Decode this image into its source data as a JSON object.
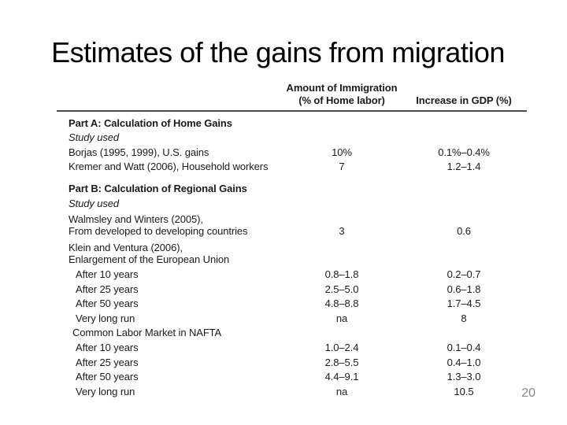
{
  "slide": {
    "title": "Estimates of the gains from migration",
    "page_number": "20"
  },
  "colors": {
    "text": "#1a1a1a",
    "title": "#000000",
    "header_rule": "#4a4a4a",
    "page_number": "#898989",
    "background": "#ffffff"
  },
  "table": {
    "header": {
      "amount_line1": "Amount of Immigration",
      "amount_line2": "(% of Home labor)",
      "gdp": "Increase in GDP (%)"
    },
    "rows": [
      {
        "label": "Part A: Calculation of Home Gains",
        "amount": "",
        "gdp": "",
        "classes": [
          "section"
        ]
      },
      {
        "label": "Study used",
        "amount": "",
        "gdp": "",
        "classes": [
          "italic"
        ]
      },
      {
        "label": "Borjas (1995, 1999), U.S. gains",
        "amount": "10%",
        "gdp": "0.1%–0.4%",
        "classes": []
      },
      {
        "label": "Kremer and Watt (2006), Household workers",
        "amount": "7",
        "gdp": "1.2–1.4",
        "classes": []
      },
      {
        "label": "Part B: Calculation of Regional Gains",
        "amount": "",
        "gdp": "",
        "classes": [
          "section",
          "gap-before"
        ]
      },
      {
        "label": "Study used",
        "amount": "",
        "gdp": "",
        "classes": [
          "italic"
        ]
      },
      {
        "lines": [
          "Walmsley and Winters (2005),",
          "From developed to developing countries"
        ],
        "amount": "3",
        "gdp": "0.6",
        "classes": [
          "two-line"
        ]
      },
      {
        "lines": [
          "Klein and Ventura (2006),",
          "Enlargement of the European Union"
        ],
        "amount": "",
        "gdp": "",
        "classes": [
          "two-line"
        ]
      },
      {
        "label": "After 10 years",
        "amount": "0.8–1.8",
        "gdp": "0.2–0.7",
        "classes": [
          "indent-2"
        ]
      },
      {
        "label": "After 25 years",
        "amount": "2.5–5.0",
        "gdp": "0.6–1.8",
        "classes": [
          "indent-2"
        ]
      },
      {
        "label": "After 50 years",
        "amount": "4.8–8.8",
        "gdp": "1.7–4.5",
        "classes": [
          "indent-2"
        ]
      },
      {
        "label": "Very long run",
        "amount": "na",
        "gdp": "8",
        "classes": [
          "indent-2"
        ]
      },
      {
        "label": "Common Labor Market in NAFTA",
        "amount": "",
        "gdp": "",
        "classes": [
          "indent-1"
        ]
      },
      {
        "label": "After 10 years",
        "amount": "1.0–2.4",
        "gdp": "0.1–0.4",
        "classes": [
          "indent-2"
        ]
      },
      {
        "label": "After 25 years",
        "amount": "2.8–5.5",
        "gdp": "0.4–1.0",
        "classes": [
          "indent-2"
        ]
      },
      {
        "label": "After 50 years",
        "amount": "4.4–9.1",
        "gdp": "1.3–3.0",
        "classes": [
          "indent-2"
        ]
      },
      {
        "label": "Very long run",
        "amount": "na",
        "gdp": "10.5",
        "classes": [
          "indent-2"
        ]
      }
    ]
  }
}
